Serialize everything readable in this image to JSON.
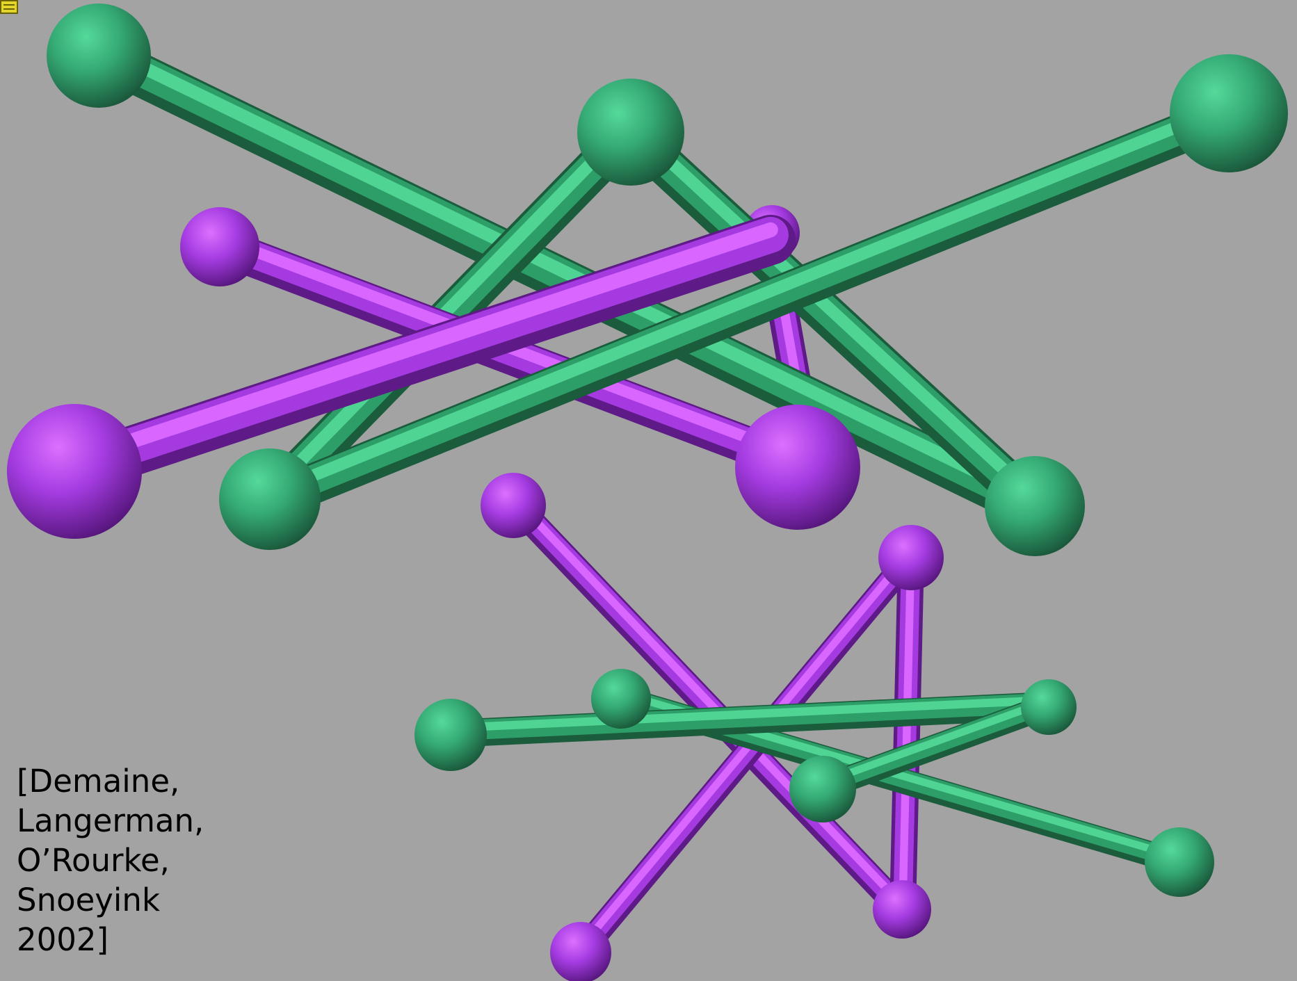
{
  "colors": {
    "background": "#a3a3a3",
    "green_light": "#4fd494",
    "green": "#2e9e68",
    "green_dark": "#1a5c3c",
    "purple_light": "#d866ff",
    "purple": "#a43ae0",
    "purple_dark": "#5e1a86"
  },
  "icons": {
    "corner_marker": "menu-icon"
  },
  "citation": {
    "lines": [
      "[Demaine,",
      "Langerman,",
      "O’Rourke,",
      "Snoeyink",
      "2002]"
    ]
  }
}
